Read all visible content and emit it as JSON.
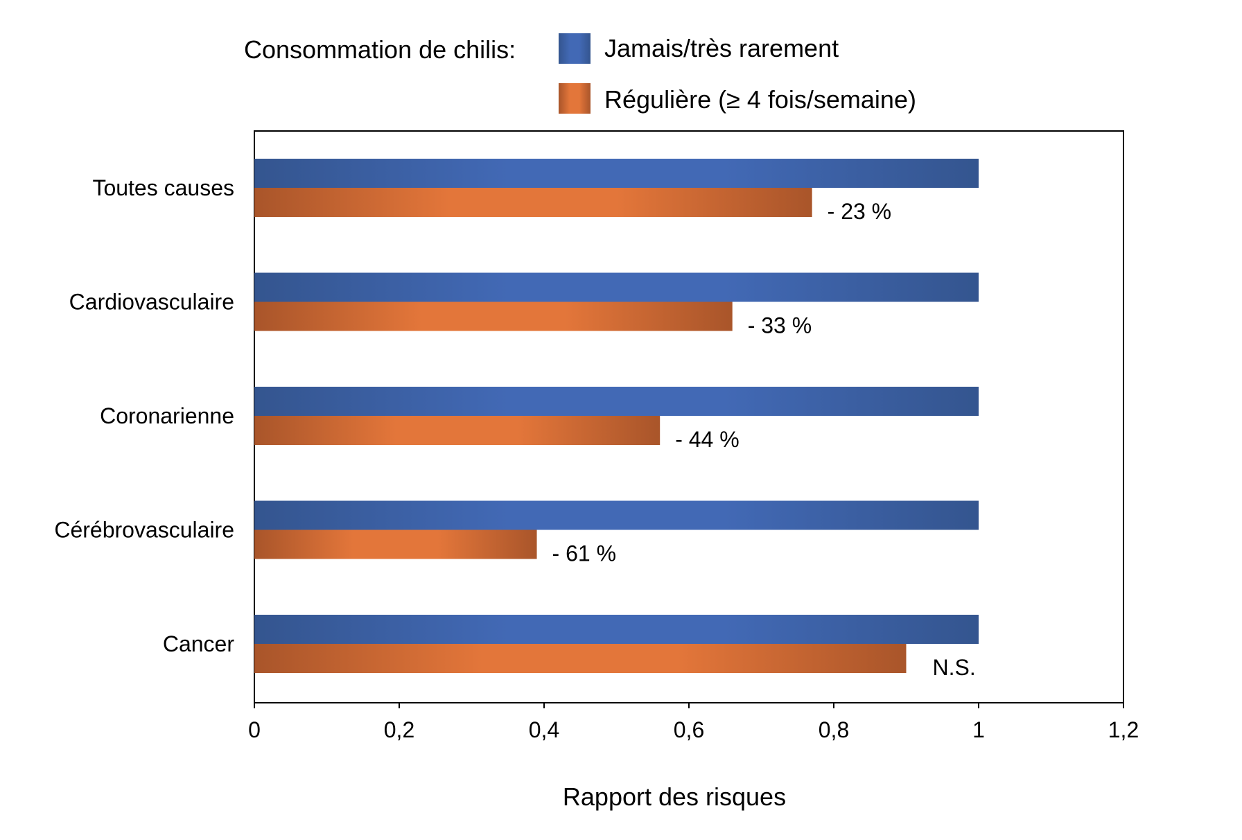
{
  "chart_data": {
    "type": "bar",
    "orientation": "horizontal",
    "legend_title": "Consommation de chilis:",
    "legend_position": "top",
    "categories": [
      "Toutes causes",
      "Cardiovasculaire",
      "Coronarienne",
      "Cérébrovasculaire",
      "Cancer"
    ],
    "series": [
      {
        "name": "Jamais/très rarement",
        "values": [
          1,
          1,
          1,
          1,
          1
        ],
        "color": "#3f67b1"
      },
      {
        "name": "Régulière (≥ 4 fois/semaine)",
        "values": [
          0.77,
          0.66,
          0.56,
          0.39,
          0.9
        ],
        "color": "#e07535"
      }
    ],
    "data_labels": [
      "- 23 %",
      "- 33 %",
      "- 44 %",
      "- 61 %",
      "N.S."
    ],
    "xlabel": "Rapport des risques",
    "xlim": [
      0,
      1.2
    ],
    "xticks": [
      "0",
      "0,2",
      "0,4",
      "0,6",
      "0,8",
      "1",
      "1,2"
    ],
    "grid": false
  }
}
